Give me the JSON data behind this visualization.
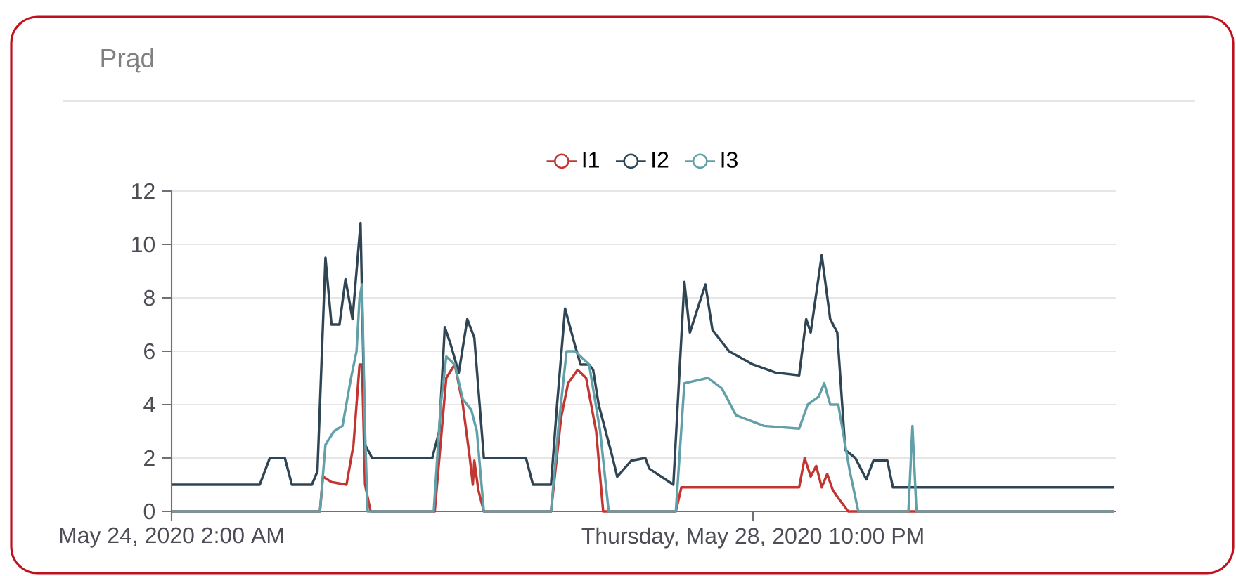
{
  "chart_data": {
    "type": "line",
    "title": "Prąd",
    "xlim": [
      "2020-05-24T02:00",
      "2020-05-31T22:30"
    ],
    "xticks": [
      {
        "value": "2020-05-24T02:00",
        "label": "May 24, 2020 2:00 AM"
      },
      {
        "value": "2020-05-28T22:00",
        "label": "Thursday, May 28, 2020 10:00 PM"
      }
    ],
    "ylim": [
      0,
      12
    ],
    "yticks": [
      0,
      2,
      4,
      6,
      8,
      10,
      12
    ],
    "grid": "y",
    "legend": "top",
    "marker": "none",
    "series": [
      {
        "name": "I1",
        "color": "#c23531",
        "x": [
          "2020-05-24T02:00",
          "2020-05-25T07:36",
          "2020-05-25T08:12",
          "2020-05-25T09:54",
          "2020-05-25T12:54",
          "2020-05-25T14:18",
          "2020-05-25T15:30",
          "2020-05-25T16:00",
          "2020-05-25T16:36",
          "2020-05-25T17:42",
          "2020-05-26T06:30",
          "2020-05-26T08:48",
          "2020-05-26T10:30",
          "2020-05-26T12:06",
          "2020-05-26T13:30",
          "2020-05-26T14:06",
          "2020-05-26T14:24",
          "2020-05-26T15:12",
          "2020-05-26T16:18",
          "2020-05-27T05:42",
          "2020-05-27T07:42",
          "2020-05-27T09:06",
          "2020-05-27T11:00",
          "2020-05-27T12:42",
          "2020-05-27T14:42",
          "2020-05-27T16:06",
          "2020-05-28T06:36",
          "2020-05-28T07:42",
          "2020-05-29T07:12",
          "2020-05-29T08:18",
          "2020-05-29T09:30",
          "2020-05-29T10:36",
          "2020-05-29T11:42",
          "2020-05-29T12:48",
          "2020-05-29T13:54",
          "2020-05-29T15:00",
          "2020-05-29T17:00",
          "2020-05-31T22:00"
        ],
        "values": [
          0,
          0,
          1.3,
          1.1,
          1.0,
          2.5,
          5.5,
          5.5,
          1.0,
          0,
          0,
          5.0,
          5.5,
          4.0,
          2.0,
          1.0,
          1.9,
          0.8,
          0,
          0,
          3.5,
          4.8,
          5.3,
          5.0,
          3.0,
          0,
          0,
          0.9,
          0.9,
          2.0,
          1.3,
          1.7,
          0.9,
          1.4,
          0.8,
          0.5,
          0,
          0
        ]
      },
      {
        "name": "I2",
        "color": "#2f4554",
        "x": [
          "2020-05-24T02:00",
          "2020-05-24T19:36",
          "2020-05-24T21:36",
          "2020-05-25T00:36",
          "2020-05-25T02:00",
          "2020-05-25T06:00",
          "2020-05-25T07:06",
          "2020-05-25T08:42",
          "2020-05-25T09:54",
          "2020-05-25T11:30",
          "2020-05-25T12:42",
          "2020-05-25T14:06",
          "2020-05-25T15:42",
          "2020-05-25T16:36",
          "2020-05-25T18:00",
          "2020-05-26T06:00",
          "2020-05-26T07:24",
          "2020-05-26T08:30",
          "2020-05-26T09:36",
          "2020-05-26T11:18",
          "2020-05-26T13:00",
          "2020-05-26T14:24",
          "2020-05-26T16:18",
          "2020-05-27T00:42",
          "2020-05-27T02:06",
          "2020-05-27T05:42",
          "2020-05-27T06:54",
          "2020-05-27T08:30",
          "2020-05-27T10:30",
          "2020-05-27T11:36",
          "2020-05-27T13:18",
          "2020-05-27T14:06",
          "2020-05-27T15:12",
          "2020-05-27T18:00",
          "2020-05-27T18:54",
          "2020-05-27T21:42",
          "2020-05-28T00:30",
          "2020-05-28T01:18",
          "2020-05-28T06:06",
          "2020-05-28T08:18",
          "2020-05-28T09:24",
          "2020-05-28T12:30",
          "2020-05-28T13:54",
          "2020-05-28T17:12",
          "2020-05-28T22:00",
          "2020-05-29T02:30",
          "2020-05-29T07:12",
          "2020-05-29T08:36",
          "2020-05-29T09:30",
          "2020-05-29T11:42",
          "2020-05-29T13:24",
          "2020-05-29T14:48",
          "2020-05-29T16:24",
          "2020-05-29T18:24",
          "2020-05-29T20:36",
          "2020-05-29T22:00",
          "2020-05-30T00:48",
          "2020-05-30T01:54",
          "2020-05-31T22:00"
        ],
        "values": [
          1,
          1,
          2,
          2,
          1,
          1,
          1.5,
          9.5,
          7,
          7,
          8.7,
          7.2,
          10.8,
          2.5,
          2,
          2,
          3,
          6.9,
          6.3,
          5.2,
          7.2,
          6.5,
          2,
          2,
          1,
          1,
          4,
          7.6,
          6.2,
          5.5,
          5.5,
          5.3,
          4.0,
          2.0,
          1.3,
          1.9,
          2.0,
          1.6,
          1.0,
          8.6,
          6.7,
          8.5,
          6.8,
          6.0,
          5.5,
          5.2,
          5.1,
          7.2,
          6.7,
          9.6,
          7.2,
          6.7,
          2.3,
          2.0,
          1.2,
          1.9,
          1.9,
          0.9,
          0.9
        ]
      },
      {
        "name": "I3",
        "color": "#61a0a8",
        "x": [
          "2020-05-24T02:00",
          "2020-05-25T07:36",
          "2020-05-25T08:42",
          "2020-05-25T10:24",
          "2020-05-25T12:06",
          "2020-05-25T13:48",
          "2020-05-25T14:54",
          "2020-05-25T15:30",
          "2020-05-25T16:00",
          "2020-05-25T16:36",
          "2020-05-25T17:06",
          "2020-05-26T06:18",
          "2020-05-26T07:42",
          "2020-05-26T08:48",
          "2020-05-26T10:30",
          "2020-05-26T12:06",
          "2020-05-26T13:48",
          "2020-05-26T14:54",
          "2020-05-26T16:18",
          "2020-05-27T05:42",
          "2020-05-27T07:06",
          "2020-05-27T08:48",
          "2020-05-27T10:30",
          "2020-05-27T13:18",
          "2020-05-27T15:30",
          "2020-05-27T17:12",
          "2020-05-28T06:36",
          "2020-05-28T08:18",
          "2020-05-28T13:00",
          "2020-05-28T15:48",
          "2020-05-28T18:36",
          "2020-05-29T00:12",
          "2020-05-29T07:12",
          "2020-05-29T08:54",
          "2020-05-29T11:06",
          "2020-05-29T12:12",
          "2020-05-29T13:24",
          "2020-05-29T15:00",
          "2020-05-29T17:18",
          "2020-05-29T19:00",
          "2020-05-30T05:00",
          "2020-05-30T05:48",
          "2020-05-30T06:36",
          "2020-05-31T22:00"
        ],
        "values": [
          0,
          0,
          2.5,
          3.0,
          3.2,
          5.0,
          6.0,
          8.0,
          8.5,
          3.0,
          0,
          0,
          4.0,
          5.8,
          5.5,
          4.2,
          3.8,
          3.0,
          0,
          0,
          3.0,
          6.0,
          6.0,
          5.5,
          3.0,
          0,
          0,
          4.8,
          5.0,
          4.6,
          3.6,
          3.2,
          3.1,
          4.0,
          4.3,
          4.8,
          4.0,
          4.0,
          1.5,
          0,
          0,
          3.2,
          0,
          0
        ]
      }
    ]
  }
}
